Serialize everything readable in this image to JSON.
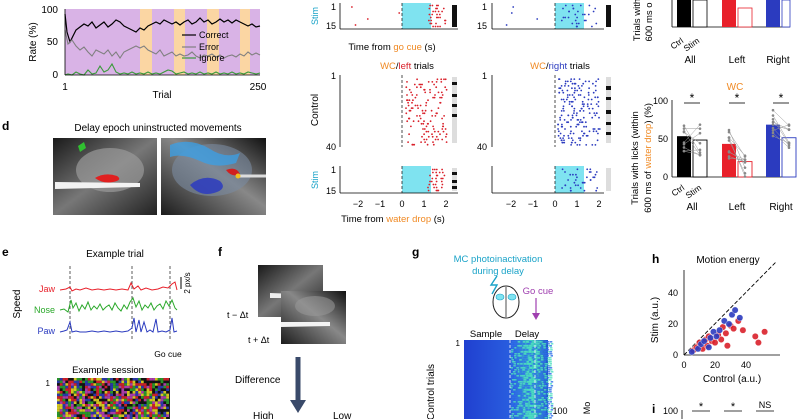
{
  "panel_c": {
    "ylabel": "Rate (%)",
    "xlabel": "Trial",
    "yticks": [
      "0",
      "50",
      "100"
    ],
    "xticks": [
      "1",
      "250"
    ],
    "legend": [
      "Correct",
      "Error",
      "Ignore"
    ],
    "colors": {
      "correct": "#000000",
      "error": "#808080",
      "ignore": "#3a9a3a",
      "bg_purple": "#d9b3e6",
      "bg_orange": "#fbd6a3"
    }
  },
  "raster": {
    "stim_label": "Stim",
    "control_label": "Control",
    "trial_15": "15",
    "trial_1": "1",
    "trial_40": "40",
    "x_top_label_prefix": "Time from ",
    "x_top_label_go": "go cue",
    "x_top_label_suffix": " (s)",
    "x_bottom_label_prefix": "Time from ",
    "x_bottom_label_water": "water drop",
    "x_bottom_label_suffix": " (s)",
    "title_left_wc": "WC",
    "title_left_sep": "/",
    "title_left_dir": "left",
    "title_left_suffix": " trials",
    "title_right_wc": "WC",
    "title_right_sep": "/",
    "title_right_dir": "right",
    "title_right_suffix": " trials",
    "xticks": [
      "−2",
      "−1",
      "0",
      "1",
      "2"
    ],
    "colors": {
      "left": "#d9202a",
      "right": "#2b3bbf",
      "stim_shade": "#7fe3f0",
      "wc": "#f08a24"
    }
  },
  "panel_d_label": "d",
  "panel_d_title": "Delay epoch uninstructed movements",
  "bar_top": {
    "ylabel_line1": "Trials with",
    "ylabel_line2": "600 ms o",
    "groups": [
      "All",
      "Left",
      "Right"
    ],
    "conditions": [
      "Ctrl",
      "Stim"
    ]
  },
  "bar_bottom": {
    "wc_label": "WC",
    "ylabel_line1": "Trials with licks (within",
    "ylabel_line2_prefix": "600 ms of ",
    "ylabel_line2_water": "water drop",
    "ylabel_line2_suffix": ") (%)",
    "yticks": [
      "0",
      "50",
      "100"
    ],
    "groups": [
      "All",
      "Left",
      "Right"
    ],
    "conditions": [
      "Ctrl",
      "Stim"
    ],
    "significance": [
      "*",
      "*",
      "*"
    ],
    "values_pct": {
      "all": [
        53,
        48
      ],
      "left": [
        43,
        20
      ],
      "right": [
        68,
        51
      ]
    }
  },
  "panel_e": {
    "label": "e",
    "title": "Example trial",
    "ylabel": "Speed",
    "traces": [
      "Jaw",
      "Nose",
      "Paw"
    ],
    "scale": "2 px/s",
    "go_cue": "Go cue",
    "session_title": "Example session",
    "session_row1": "1",
    "colors": {
      "jaw": "#e8202a",
      "nose": "#2aa82a",
      "paw": "#2b3bbf"
    }
  },
  "panel_f": {
    "label": "f",
    "t_minus": "t − Δt",
    "t_plus": "t + Δt",
    "difference": "Difference",
    "high": "High",
    "low": "Low"
  },
  "panel_g": {
    "label": "g",
    "title_line1": "MC photoinactivation",
    "title_line2": "during delay",
    "go_cue": "Go cue",
    "sample": "Sample",
    "delay": "Delay",
    "row1": "1",
    "ylabel": "Control trials",
    "right_tick": "100",
    "right_label": "Mo"
  },
  "panel_h": {
    "label": "h",
    "title": "Motion energy",
    "xlabel": "Control (a.u.)",
    "ylabel": "Stim (a.u.)",
    "ticks": [
      "0",
      "20",
      "40"
    ]
  },
  "panel_i": {
    "label": "i",
    "tick": "100",
    "sig": [
      "*",
      "*",
      "NS"
    ]
  },
  "chart_data": {
    "type": "scatter",
    "title": "Motion energy",
    "xlabel": "Control (a.u.)",
    "ylabel": "Stim (a.u.)",
    "xlim": [
      0,
      55
    ],
    "ylim": [
      0,
      55
    ],
    "series": [
      {
        "name": "left (red)",
        "color": "#d9202a",
        "x": [
          6,
          8,
          10,
          12,
          14,
          15,
          16,
          18,
          20,
          22,
          24,
          25,
          27,
          28,
          30,
          32,
          35,
          38,
          46,
          48,
          52
        ],
        "y": [
          3,
          5,
          8,
          4,
          10,
          6,
          12,
          9,
          8,
          13,
          10,
          18,
          14,
          6,
          19,
          17,
          22,
          16,
          12,
          8,
          15
        ]
      },
      {
        "name": "right (blue)",
        "color": "#2b3bbf",
        "x": [
          5,
          9,
          11,
          13,
          16,
          17,
          19,
          21,
          23,
          26,
          29,
          31,
          33,
          36
        ],
        "y": [
          2,
          4,
          7,
          9,
          5,
          11,
          15,
          12,
          16,
          22,
          20,
          26,
          29,
          24
        ]
      }
    ]
  }
}
